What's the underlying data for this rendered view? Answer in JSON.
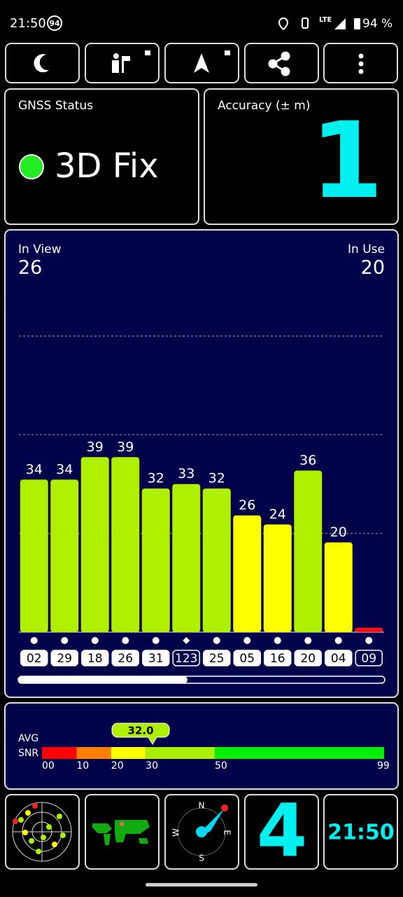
{
  "status_bar": {
    "time": "21:50",
    "badge": "94",
    "network": "LTE",
    "battery": "94 %"
  },
  "gnss_status": {
    "title": "GNSS Status",
    "fix": "3D Fix"
  },
  "accuracy": {
    "title": "Accuracy (± m)",
    "value": 1
  },
  "chart_data": {
    "type": "bar",
    "in_view_label": "In View",
    "in_view": 26,
    "in_use_label": "In Use",
    "in_use": 20,
    "categories": [
      "02",
      "29",
      "18",
      "26",
      "31",
      "123",
      "25",
      "05",
      "16",
      "20",
      "04",
      "09"
    ],
    "values": [
      34,
      34,
      39,
      39,
      32,
      33,
      32,
      26,
      24,
      36,
      20,
      1
    ],
    "colors": [
      "#aef000",
      "#aef000",
      "#aef000",
      "#aef000",
      "#aef000",
      "#aef000",
      "#aef000",
      "#ffff00",
      "#ffff00",
      "#aef000",
      "#ffff00",
      "#ff1010"
    ],
    "markers": [
      "circle",
      "circle",
      "circle",
      "circle",
      "circle",
      "diamond",
      "circle",
      "circle",
      "circle",
      "circle",
      "circle",
      "circle"
    ],
    "used": [
      true,
      true,
      true,
      true,
      true,
      false,
      true,
      true,
      true,
      true,
      true,
      false
    ],
    "ylim": [
      0,
      87
    ],
    "yticks": [
      22,
      44,
      66
    ],
    "grid": true
  },
  "snr": {
    "label_1": "AVG",
    "label_2": "SNR",
    "xlim": [
      0,
      99
    ],
    "xticks": [
      {
        "value": 0,
        "label": "00"
      },
      10,
      20,
      30,
      50,
      99
    ],
    "segments": [
      {
        "from": 0,
        "to": 10,
        "color": "#ff0000"
      },
      {
        "from": 10,
        "to": 20,
        "color": "#ff8000"
      },
      {
        "from": 20,
        "to": 30,
        "color": "#ffff00"
      },
      {
        "from": 30,
        "to": 50,
        "color": "#aaee00"
      },
      {
        "from": 50,
        "to": 99,
        "color": "#00ee00"
      }
    ],
    "avg": 32,
    "avg_label": "32.0"
  },
  "widgets": {
    "compass": {
      "n": "N",
      "e": "E",
      "s": "S",
      "w": "W"
    },
    "satellites": 4,
    "clock": "21:50"
  }
}
